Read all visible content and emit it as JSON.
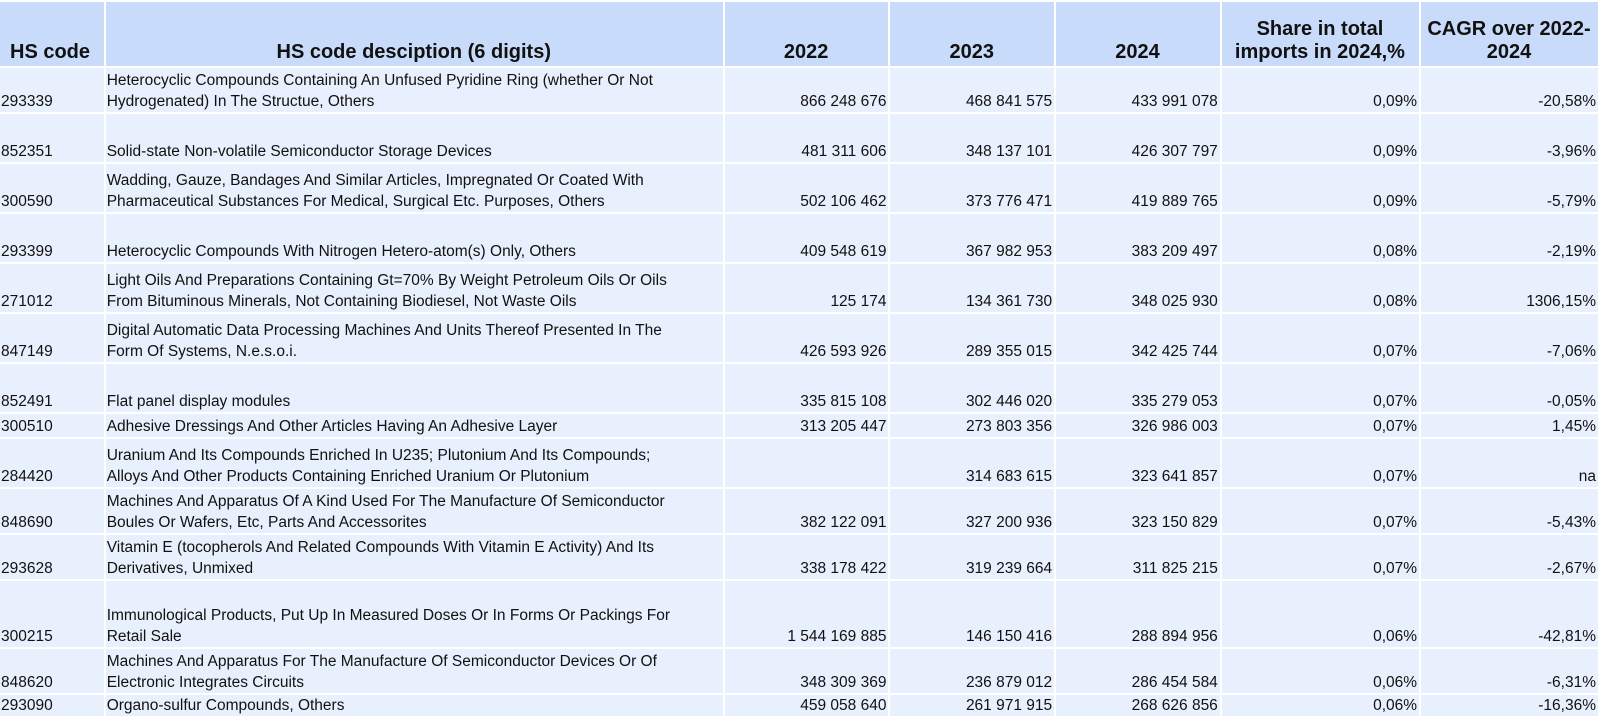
{
  "headers": {
    "hs_code": "HS code",
    "desc": "HS code desciption (6 digits)",
    "y2022": "2022",
    "y2023": "2023",
    "y2024": "2024",
    "share": "Share in total imports in 2024,%",
    "cagr": "CAGR over 2022-2024"
  },
  "rows": [
    {
      "code": "293339",
      "desc": " Heterocyclic Compounds Containing An Unfused Pyridine Ring (whether Or Not\nHydrogenated) In The Structue, Others",
      "v2022": "866 248 676",
      "v2023": "468 841 575",
      "v2024": "433 991 078",
      "share": "0,09%",
      "cagr": "-20,58%"
    },
    {
      "code": "852351",
      "desc": " Solid-state Non-volatile Semiconductor Storage Devices",
      "v2022": "481 311 606",
      "v2023": "348 137 101",
      "v2024": "426 307 797",
      "share": "0,09%",
      "cagr": "-3,96%"
    },
    {
      "code": "300590",
      "desc": " Wadding, Gauze, Bandages And Similar Articles, Impregnated Or Coated With\nPharmaceutical Substances For Medical, Surgical Etc. Purposes, Others",
      "v2022": "502 106 462",
      "v2023": "373 776 471",
      "v2024": "419 889 765",
      "share": "0,09%",
      "cagr": "-5,79%"
    },
    {
      "code": "293399",
      "desc": " Heterocyclic Compounds With Nitrogen Hetero-atom(s) Only, Others",
      "v2022": "409 548 619",
      "v2023": "367 982 953",
      "v2024": "383 209 497",
      "share": "0,08%",
      "cagr": "-2,19%"
    },
    {
      "code": "271012",
      "desc": " Light Oils And Preparations Containing Gt=70% By Weight Petroleum Oils Or Oils\nFrom Bituminous Minerals, Not Containing Biodiesel, Not Waste Oils",
      "v2022": "125 174",
      "v2023": "134 361 730",
      "v2024": "348 025 930",
      "share": "0,08%",
      "cagr": "1306,15%"
    },
    {
      "code": "847149",
      "desc": " Digital Automatic Data Processing Machines And Units Thereof Presented In The\nForm Of Systems, N.e.s.o.i.",
      "v2022": "426 593 926",
      "v2023": "289 355 015",
      "v2024": "342 425 744",
      "share": "0,07%",
      "cagr": "-7,06%"
    },
    {
      "code": "852491",
      "desc": "Flat panel display modules",
      "v2022": "335 815 108",
      "v2023": "302 446 020",
      "v2024": "335 279 053",
      "share": "0,07%",
      "cagr": "-0,05%"
    },
    {
      "code": "300510",
      "desc": " Adhesive Dressings And Other Articles Having An Adhesive Layer",
      "v2022": "313 205 447",
      "v2023": "273 803 356",
      "v2024": "326 986 003",
      "share": "0,07%",
      "cagr": "1,45%"
    },
    {
      "code": "284420",
      "desc": " Uranium And Its Compounds Enriched In U235; Plutonium And Its Compounds;\nAlloys And Other Products Containing Enriched Uranium Or Plutonium",
      "v2022": "",
      "v2023": "314 683 615",
      "v2024": "323 641 857",
      "share": "0,07%",
      "cagr": "na"
    },
    {
      "code": "848690",
      "desc": " Machines And Apparatus Of A Kind Used For The Manufacture Of Semiconductor\nBoules Or Wafers, Etc, Parts And Accessorites",
      "v2022": "382 122 091",
      "v2023": "327 200 936",
      "v2024": "323 150 829",
      "share": "0,07%",
      "cagr": "-5,43%"
    },
    {
      "code": "293628",
      "desc": " Vitamin E (tocopherols And Related Compounds With Vitamin E Activity) And Its\nDerivatives, Unmixed",
      "v2022": "338 178 422",
      "v2023": "319 239 664",
      "v2024": "311 825 215",
      "share": "0,07%",
      "cagr": "-2,67%"
    },
    {
      "code": "300215",
      "desc": " Immunological Products, Put Up In Measured Doses Or In Forms Or Packings For\nRetail Sale",
      "v2022": "1 544 169 885",
      "v2023": "146 150 416",
      "v2024": "288 894 956",
      "share": "0,06%",
      "cagr": "-42,81%"
    },
    {
      "code": "848620",
      "desc": " Machines And Apparatus For The Manufacture Of Semiconductor Devices Or Of\nElectronic Integrates Circuits",
      "v2022": "348 309 369",
      "v2023": "236 879 012",
      "v2024": "286 454 584",
      "share": "0,06%",
      "cagr": "-6,31%"
    },
    {
      "code": "293090",
      "desc": " Organo-sulfur Compounds, Others",
      "v2022": "459 058 640",
      "v2023": "261 971 915",
      "v2024": "268 626 856",
      "share": "0,06%",
      "cagr": "-16,36%"
    }
  ]
}
